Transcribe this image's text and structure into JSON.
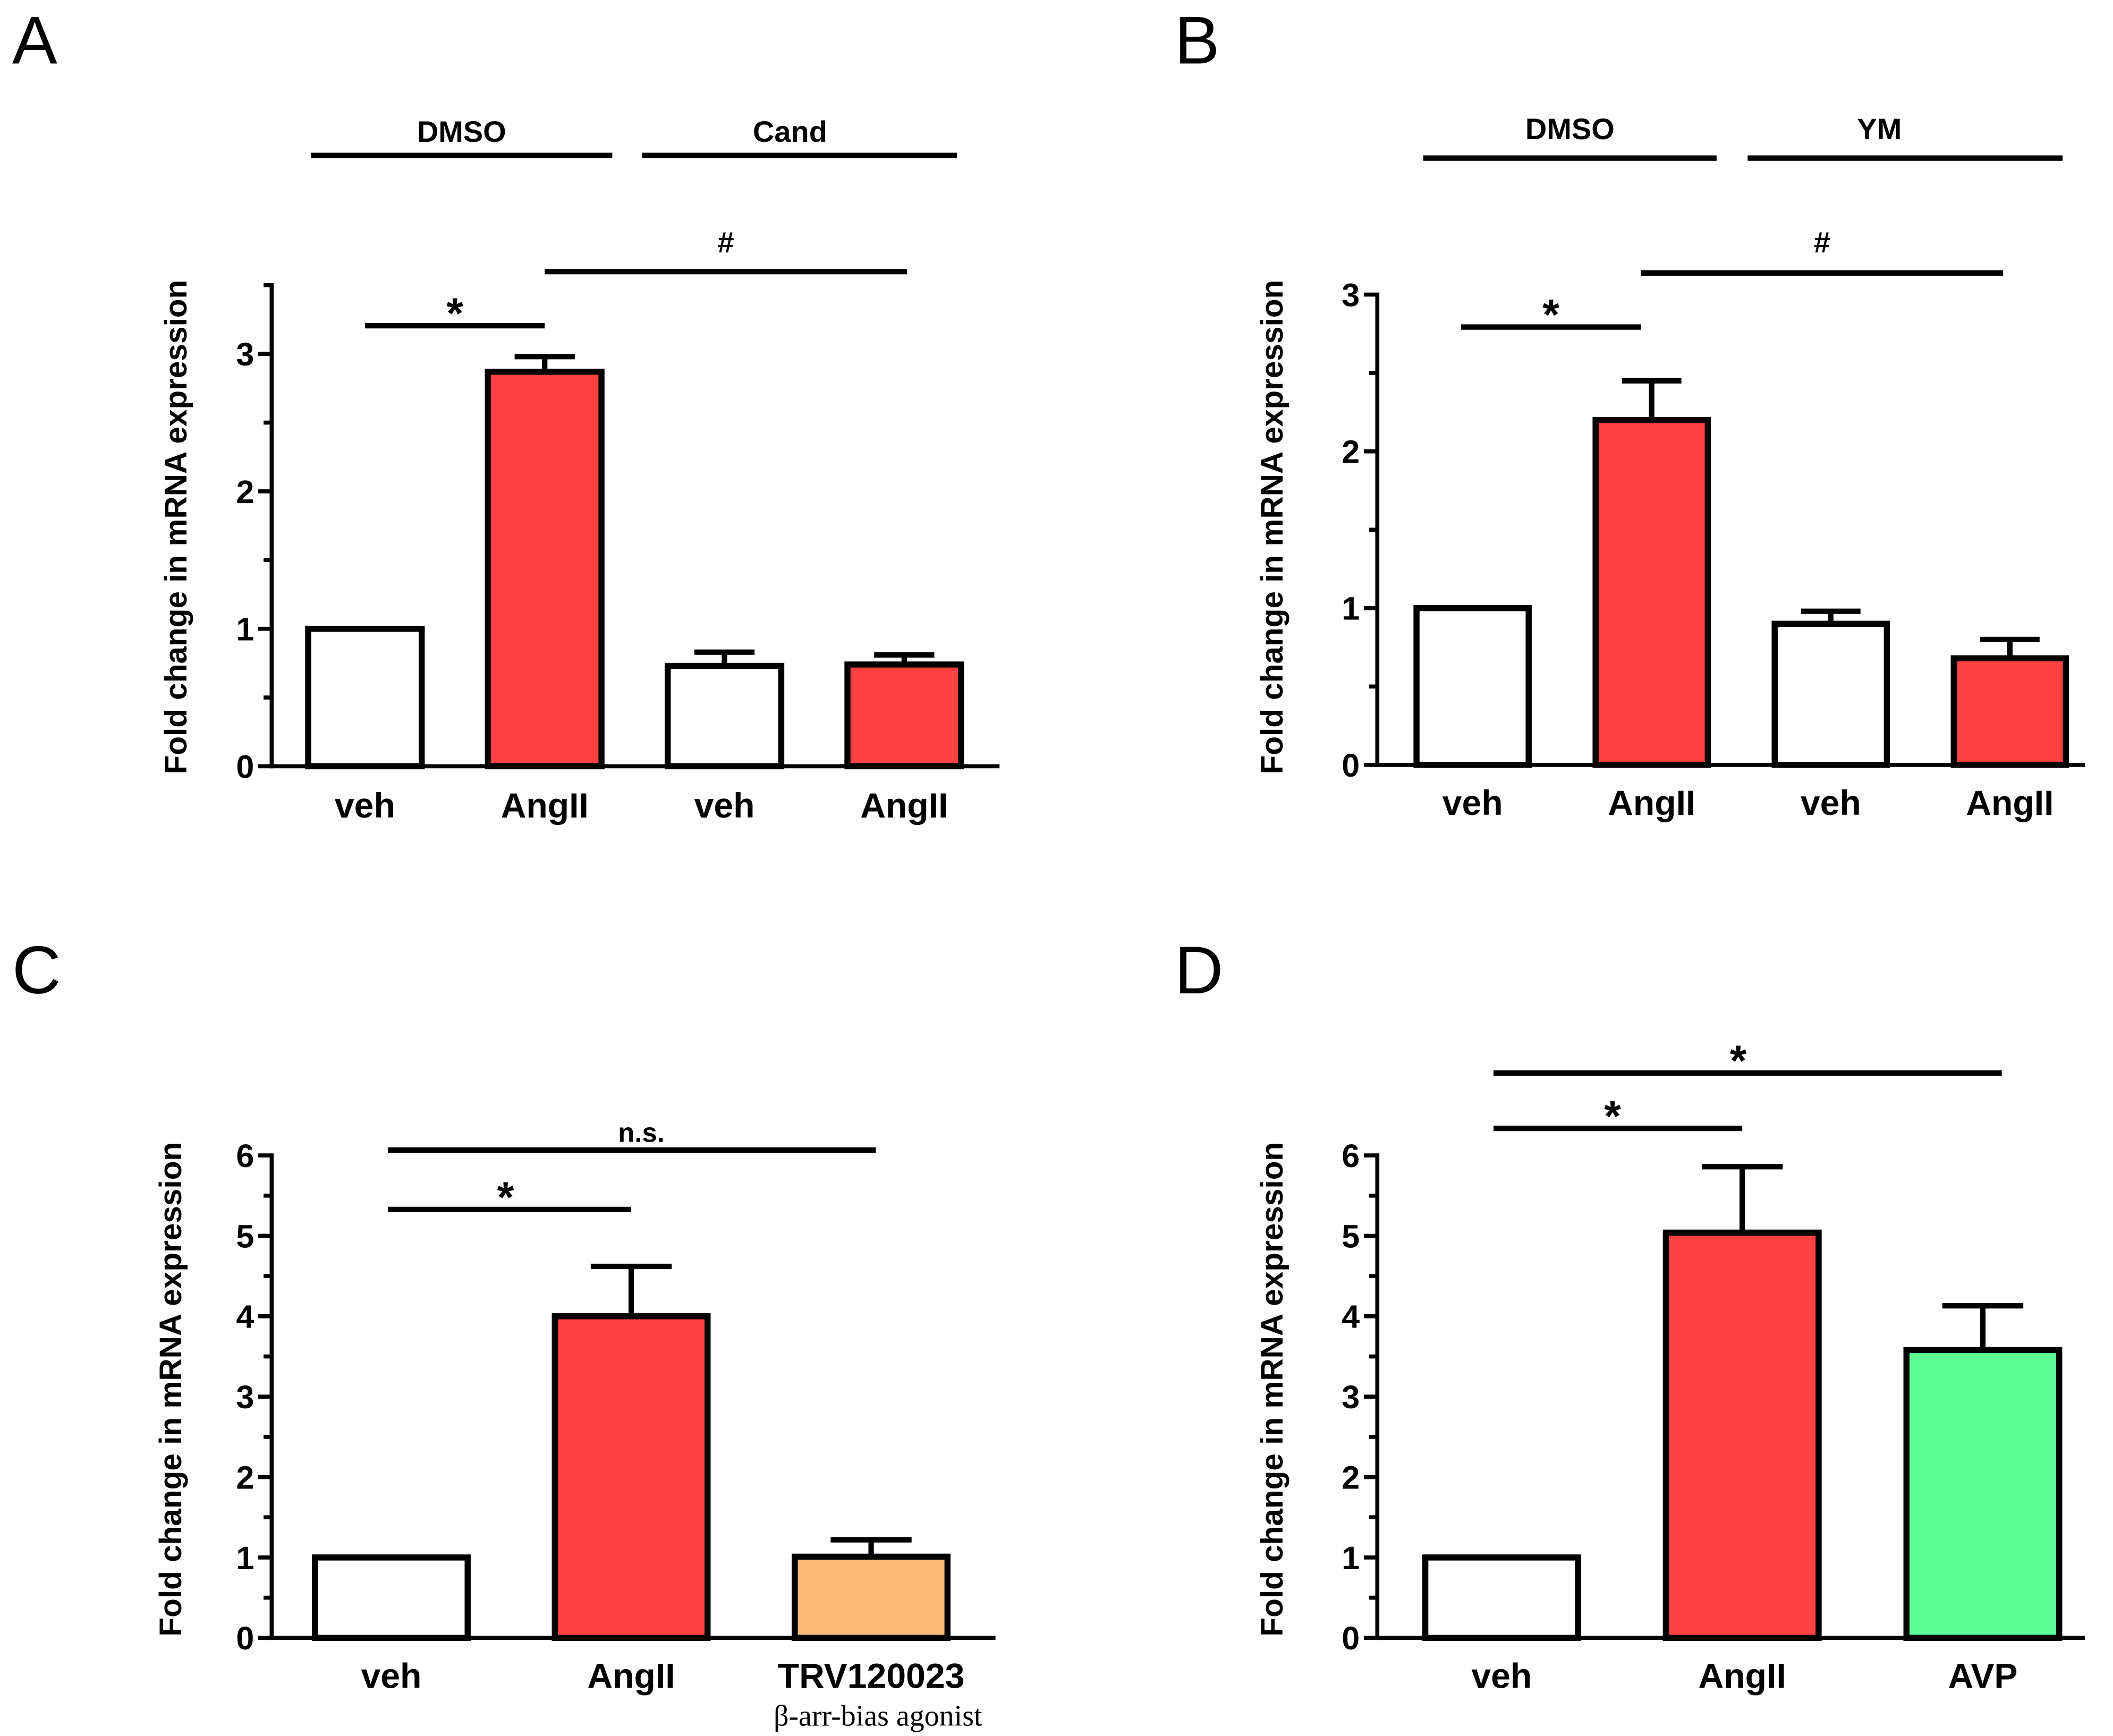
{
  "chart_data": [
    {
      "panel": "A",
      "type": "bar",
      "categories": [
        "veh",
        "AngII",
        "veh",
        "AngII"
      ],
      "values": [
        1.0,
        2.87,
        0.73,
        0.74
      ],
      "errors": [
        0,
        0.11,
        0.1,
        0.07
      ],
      "colors": [
        "#ffffff",
        "#ff4141",
        "#ffffff",
        "#ff4141"
      ],
      "ylabel": "Fold change in mRNA expression",
      "ylim": [
        0,
        3.5
      ],
      "yticks": [
        0,
        1,
        2,
        3
      ],
      "yticks_minor_step": 0.5,
      "grid": false,
      "groups": [
        {
          "label": "DMSO",
          "categories": [
            0,
            1
          ]
        },
        {
          "label": "Cand",
          "categories": [
            2,
            3
          ]
        }
      ],
      "significance": [
        {
          "label": "*",
          "from": 0,
          "to": 1
        },
        {
          "label": "#",
          "from": 1,
          "to": 3
        }
      ]
    },
    {
      "panel": "B",
      "type": "bar",
      "categories": [
        "veh",
        "AngII",
        "veh",
        "AngII"
      ],
      "values": [
        1.0,
        2.2,
        0.9,
        0.68
      ],
      "errors": [
        0,
        0.25,
        0.08,
        0.12
      ],
      "colors": [
        "#ffffff",
        "#ff4141",
        "#ffffff",
        "#ff4141"
      ],
      "ylabel": "Fold change in mRNA expression",
      "ylim": [
        0,
        3
      ],
      "yticks": [
        0,
        1,
        2,
        3
      ],
      "yticks_minor_step": 0.5,
      "grid": false,
      "groups": [
        {
          "label": "DMSO",
          "categories": [
            0,
            1
          ]
        },
        {
          "label": "YM",
          "categories": [
            2,
            3
          ]
        }
      ],
      "significance": [
        {
          "label": "*",
          "from": 0,
          "to": 1
        },
        {
          "label": "#",
          "from": 1,
          "to": 3
        }
      ]
    },
    {
      "panel": "C",
      "type": "bar",
      "categories": [
        "veh",
        "AngII",
        "TRV120023"
      ],
      "sublabels": [
        {
          "index": 2,
          "text": "β-arr-bias agonist"
        }
      ],
      "values": [
        1.0,
        4.0,
        1.01
      ],
      "errors": [
        0,
        0.62,
        0.21
      ],
      "colors": [
        "#ffffff",
        "#ff4141",
        "#ffb978"
      ],
      "ylabel": "Fold change in mRNA expression",
      "ylim": [
        0,
        6
      ],
      "yticks": [
        0,
        1,
        2,
        3,
        4,
        5,
        6
      ],
      "yticks_minor_step": 0.5,
      "grid": false,
      "groups": [],
      "significance": [
        {
          "label": "*",
          "from": 0,
          "to": 1
        },
        {
          "label": "n.s.",
          "from": 0,
          "to": 2
        }
      ]
    },
    {
      "panel": "D",
      "type": "bar",
      "categories": [
        "veh",
        "AngII",
        "AVP"
      ],
      "values": [
        1.0,
        5.04,
        3.58
      ],
      "errors": [
        0,
        0.82,
        0.55
      ],
      "colors": [
        "#ffffff",
        "#ff4141",
        "#5cff96"
      ],
      "ylabel": "Fold change in mRNA expression",
      "ylim": [
        0,
        6
      ],
      "yticks": [
        0,
        1,
        2,
        3,
        4,
        5,
        6
      ],
      "yticks_minor_step": 0.5,
      "grid": false,
      "groups": [],
      "significance": [
        {
          "label": "*",
          "from": 0,
          "to": 1
        },
        {
          "label": "*",
          "from": 0,
          "to": 2
        }
      ]
    }
  ]
}
